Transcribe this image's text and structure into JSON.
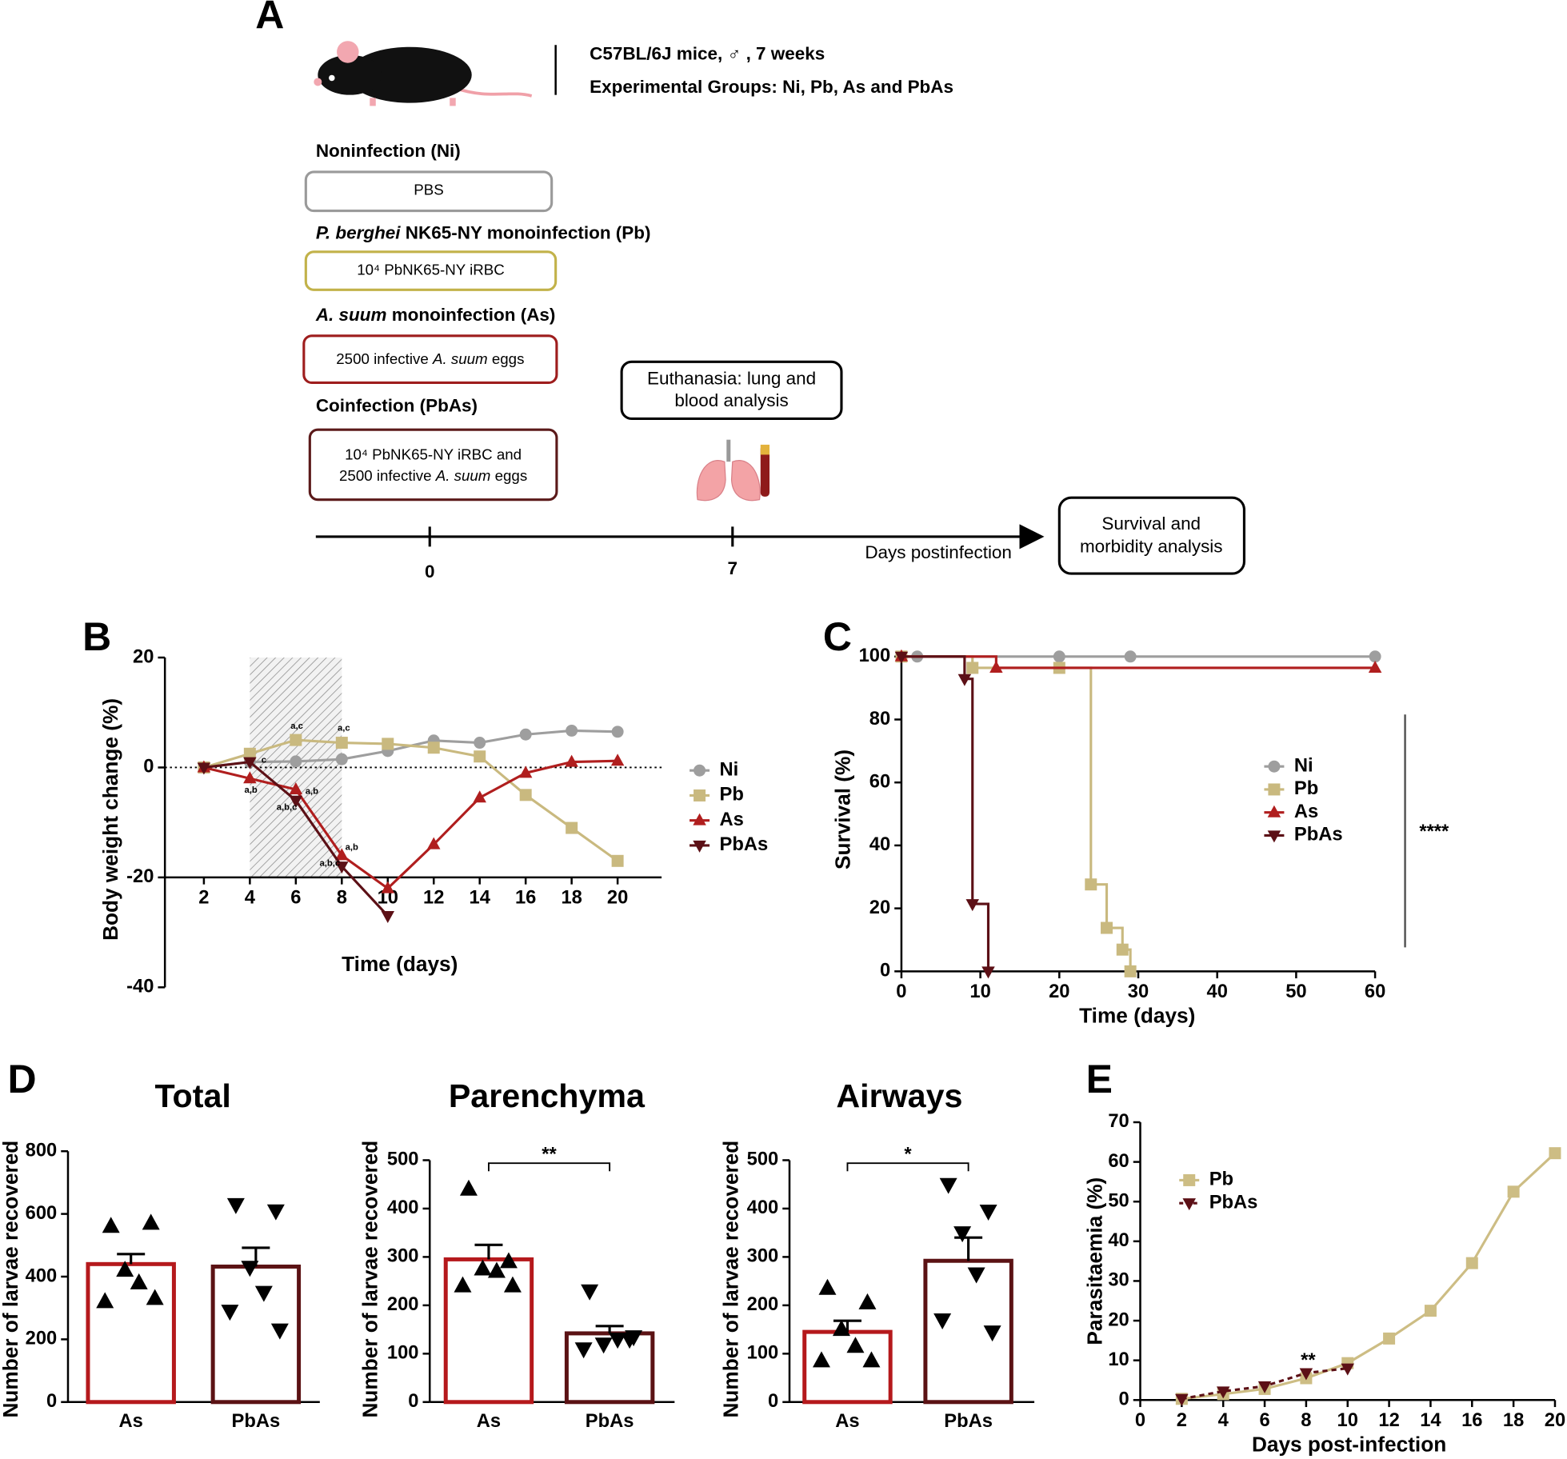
{
  "panel_a": {
    "label": "A",
    "strain": "C57BL/6J mice, ♂ , 7 weeks",
    "groups_line": "Experimental Groups: Ni, Pb, As and PbAs",
    "groups": [
      {
        "heading": [
          "Noninfection (Ni)"
        ],
        "box": [
          [
            "PBS"
          ]
        ]
      },
      {
        "heading": [
          {
            "italic": "P. berghei"
          },
          " NK65-NY monoinfection (Pb)"
        ],
        "box": [
          [
            "10⁴ PbNK65-NY iRBC"
          ]
        ]
      },
      {
        "heading": [
          {
            "italic": "A. suum"
          },
          " monoinfection (As)"
        ],
        "box": [
          [
            "2500 infective ",
            {
              "italic": "A. suum"
            },
            " eggs"
          ]
        ]
      },
      {
        "heading": [
          "Coinfection (PbAs)"
        ],
        "box": [
          [
            "10⁴ PbNK65-NY iRBC and"
          ],
          [
            "2500 infective ",
            {
              "italic": "A. suum"
            },
            " eggs"
          ]
        ]
      }
    ],
    "euthanasia": [
      "Euthanasia: lung and",
      "blood analysis"
    ],
    "timeline": {
      "ticks": [
        "0",
        "7"
      ],
      "axis_label": "Days postinfection"
    },
    "survival_box": [
      "Survival and",
      "morbidity analysis"
    ]
  },
  "chart_data": [
    {
      "type": "line",
      "panel": "B",
      "ylabel": "Body weight change (%)",
      "xlabel": "Time (days)",
      "x": [
        2,
        4,
        6,
        8,
        10,
        12,
        14,
        16,
        18,
        20
      ],
      "xlim": [
        0,
        22
      ],
      "xticks": [
        2,
        4,
        6,
        8,
        10,
        12,
        14,
        16,
        18,
        20
      ],
      "ylim": [
        -40,
        20
      ],
      "yticks": [
        -40,
        -20,
        0,
        20
      ],
      "xaxis_crossing": -20,
      "zero_line": true,
      "shaded_days": [
        4,
        8
      ],
      "series": [
        {
          "name": "Ni",
          "color": "#9e9e9e",
          "marker": "circle",
          "values": [
            0,
            1,
            1.1,
            1.5,
            3,
            4.9,
            4.5,
            6,
            6.7,
            6.5
          ]
        },
        {
          "name": "Pb",
          "color": "#c9b97f",
          "marker": "square",
          "values": [
            0,
            2.5,
            5,
            4.5,
            4.3,
            3.6,
            2,
            -5,
            -11,
            -17
          ]
        },
        {
          "name": "As",
          "color": "#b01e1e",
          "marker": "triangle-up",
          "values": [
            0,
            -2,
            -4,
            -16,
            -22,
            -14,
            -5.5,
            -1,
            1,
            1.2
          ]
        },
        {
          "name": "PbAs",
          "color": "#5c1016",
          "marker": "triangle-down",
          "values": [
            0,
            1,
            -6,
            -18,
            -27,
            null,
            null,
            null,
            null,
            null
          ]
        }
      ],
      "annotations": [
        "a,c",
        "a,c",
        "c",
        "a,b",
        "a,b",
        "a,b,c",
        "a,b",
        "a,b,c"
      ],
      "legend": "right"
    },
    {
      "type": "step",
      "panel": "C",
      "ylabel": "Survival (%)",
      "xlabel": "Time (days)",
      "xlim": [
        0,
        60
      ],
      "xticks": [
        0,
        10,
        20,
        30,
        40,
        50,
        60
      ],
      "ylim": [
        0,
        100
      ],
      "yticks": [
        0,
        20,
        40,
        60,
        80,
        100
      ],
      "series": [
        {
          "name": "Ni",
          "color": "#9e9e9e",
          "marker": "circle",
          "x": [
            2,
            20,
            29,
            60
          ],
          "values": [
            100,
            100,
            100,
            100
          ]
        },
        {
          "name": "Pb",
          "color": "#c9b97f",
          "marker": "square",
          "x": [
            0,
            9,
            20,
            24,
            26,
            28,
            29
          ],
          "values": [
            100,
            96.4,
            96.4,
            27.6,
            13.8,
            6.9,
            0
          ]
        },
        {
          "name": "As",
          "color": "#b01e1e",
          "marker": "triangle-up",
          "x": [
            0,
            12,
            60
          ],
          "values": [
            100,
            96.4,
            96.4
          ]
        },
        {
          "name": "PbAs",
          "color": "#5c1016",
          "marker": "triangle-down",
          "x": [
            0,
            8,
            9,
            11
          ],
          "values": [
            100,
            92.9,
            21.4,
            0
          ]
        }
      ],
      "significance": "****",
      "legend": "right"
    },
    {
      "type": "bar_scatter",
      "panel": "D",
      "title": "Total",
      "ylabel": "Number of larvae recovered",
      "categories": [
        "As",
        "PbAs"
      ],
      "values": [
        440,
        432
      ],
      "errors": [
        32,
        60
      ],
      "points": [
        [
          560,
          570,
          420,
          380,
          320,
          330
        ],
        [
          630,
          610,
          430,
          350,
          290,
          230
        ]
      ],
      "colors": [
        "#b5191c",
        "#5b1214"
      ],
      "markers": [
        "triangle-up",
        "triangle-down"
      ],
      "ylim": [
        0,
        800
      ],
      "yticks": [
        0,
        200,
        400,
        600,
        800
      ]
    },
    {
      "type": "bar_scatter",
      "title": "Parenchyma",
      "ylabel": "Number of larvae recovered",
      "categories": [
        "As",
        "PbAs"
      ],
      "values": [
        295,
        142
      ],
      "errors": [
        30,
        15
      ],
      "points": [
        [
          440,
          290,
          275,
          270,
          240,
          240
        ],
        [
          230,
          130,
          120,
          130,
          110,
          135
        ]
      ],
      "colors": [
        "#b5191c",
        "#5b1214"
      ],
      "markers": [
        "triangle-up",
        "triangle-down"
      ],
      "ylim": [
        0,
        500
      ],
      "yticks": [
        0,
        100,
        200,
        300,
        400,
        500
      ],
      "significance": "**"
    },
    {
      "type": "bar_scatter",
      "title": "Airways",
      "ylabel": "Number of larvae recovered",
      "categories": [
        "As",
        "PbAs"
      ],
      "values": [
        145,
        292
      ],
      "errors": [
        23,
        48
      ],
      "points": [
        [
          235,
          205,
          150,
          115,
          85,
          85
        ],
        [
          450,
          395,
          350,
          265,
          170,
          145
        ]
      ],
      "colors": [
        "#b5191c",
        "#5b1214"
      ],
      "markers": [
        "triangle-up",
        "triangle-down"
      ],
      "ylim": [
        0,
        500
      ],
      "yticks": [
        0,
        100,
        200,
        300,
        400,
        500
      ],
      "significance": "*"
    },
    {
      "type": "line",
      "panel": "E",
      "ylabel": "Parasitaemia (%)",
      "xlabel": "Days post-infection",
      "x": [
        2,
        4,
        6,
        8,
        10,
        12,
        14,
        16,
        18,
        20
      ],
      "xlim": [
        0,
        20
      ],
      "xticks": [
        0,
        2,
        4,
        6,
        8,
        10,
        12,
        14,
        16,
        18,
        20
      ],
      "ylim": [
        0,
        70
      ],
      "yticks": [
        0,
        10,
        20,
        30,
        40,
        50,
        60,
        70
      ],
      "series": [
        {
          "name": "Pb",
          "color": "#cdbd84",
          "marker": "square",
          "values": [
            0.3,
            1.5,
            2.8,
            5.5,
            9.3,
            15.5,
            22.5,
            34.5,
            52.5,
            62.2
          ]
        },
        {
          "name": "PbAs",
          "color": "#5c1016",
          "marker": "triangle-down",
          "dash": true,
          "values": [
            0.3,
            2.2,
            3.5,
            6.8,
            8,
            null,
            null,
            null,
            null,
            null
          ]
        }
      ],
      "annotations": [
        "**"
      ],
      "legend": "upper left"
    }
  ]
}
